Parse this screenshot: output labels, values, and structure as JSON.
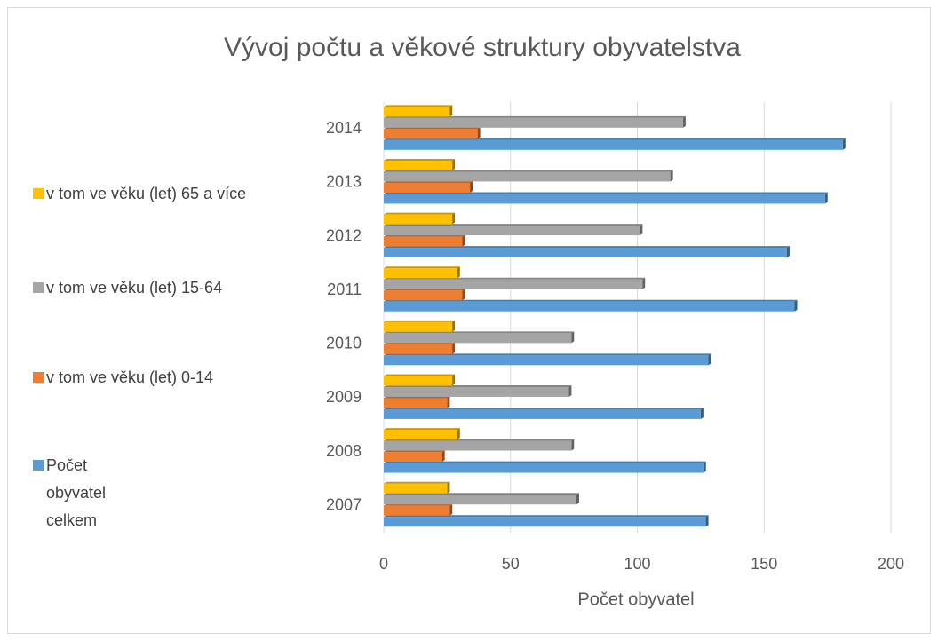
{
  "chart_data": {
    "type": "bar",
    "orientation": "horizontal",
    "title": "Vývoj počtu a věkové struktury obyvatelstva",
    "x_label": "Počet obyvatel",
    "categories": [
      "2007",
      "2008",
      "2009",
      "2010",
      "2011",
      "2012",
      "2013",
      "2014"
    ],
    "series": [
      {
        "name": "Počet obyvatel celkem",
        "color": "#5b9bd5",
        "values": [
          127,
          126,
          125,
          128,
          162,
          159,
          174,
          181
        ]
      },
      {
        "name": "v tom ve věku (let) 0-14",
        "color": "#ed7d31",
        "values": [
          26,
          23,
          25,
          27,
          31,
          31,
          34,
          37
        ]
      },
      {
        "name": "v tom ve věku (let) 15-64",
        "color": "#a5a5a5",
        "values": [
          76,
          74,
          73,
          74,
          102,
          101,
          113,
          118
        ]
      },
      {
        "name": "v tom ve věku (let) 65 a více",
        "color": "#ffc000",
        "values": [
          25,
          29,
          27,
          27,
          29,
          27,
          27,
          26
        ]
      }
    ],
    "xlim": [
      0,
      200
    ],
    "xticks": [
      0,
      50,
      100,
      150,
      200
    ],
    "grid": true,
    "legend": "left"
  }
}
